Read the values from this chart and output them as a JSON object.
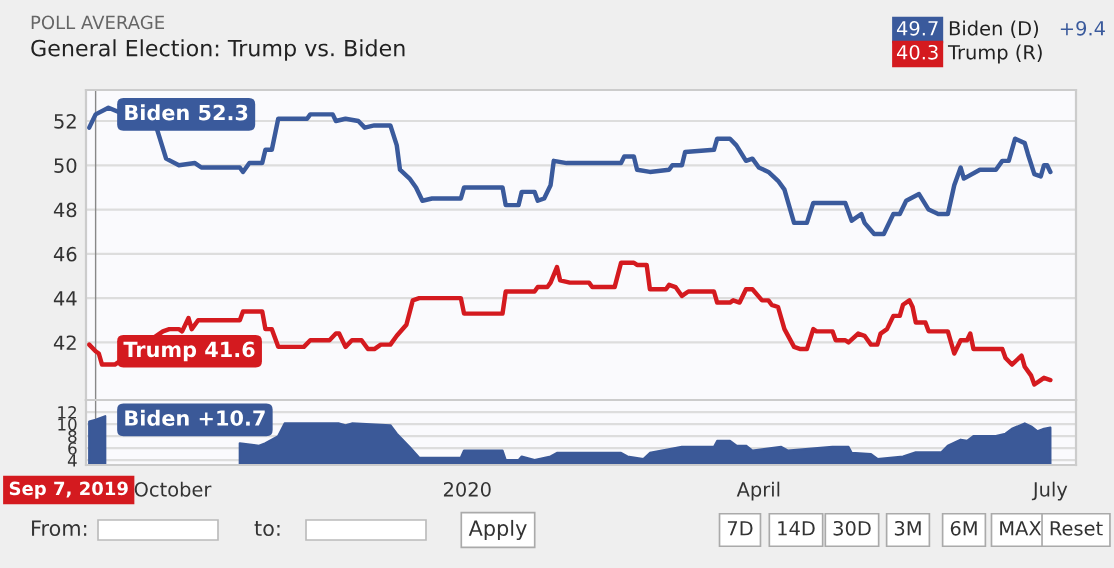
{
  "chart_data": [
    {
      "type": "line",
      "subtitle": "POLL AVERAGE",
      "title": "General Election: Trump vs. Biden",
      "series": [
        {
          "name": "Biden (D)",
          "color": "#3a5a9c",
          "x": [
            "2019-09-05",
            "2019-09-07",
            "2019-09-11",
            "2019-09-26",
            "2019-09-29",
            "2019-10-03",
            "2019-10-08",
            "2019-10-10",
            "2019-10-22",
            "2019-10-23",
            "2019-10-25",
            "2019-10-29",
            "2019-10-30",
            "2019-11-01",
            "2019-11-03",
            "2019-11-12",
            "2019-11-13",
            "2019-11-20",
            "2019-11-21",
            "2019-11-24",
            "2019-11-28",
            "2019-11-30",
            "2019-12-03",
            "2019-12-08",
            "2019-12-10",
            "2019-12-11",
            "2019-12-14",
            "2019-12-16",
            "2019-12-18",
            "2019-12-21",
            "2019-12-30",
            "2019-12-31",
            "2020-01-12",
            "2020-01-13",
            "2020-01-17",
            "2020-01-18",
            "2020-01-22",
            "2020-01-23",
            "2020-01-25",
            "2020-01-27",
            "2020-01-28",
            "2020-02-01",
            "2020-02-18",
            "2020-02-19",
            "2020-02-22",
            "2020-02-23",
            "2020-02-27",
            "2020-03-04",
            "2020-03-05",
            "2020-03-08",
            "2020-03-09",
            "2020-03-18",
            "2020-03-19",
            "2020-03-23",
            "2020-03-25",
            "2020-03-28",
            "2020-03-30",
            "2020-04-01",
            "2020-04-04",
            "2020-04-07",
            "2020-04-09",
            "2020-04-12",
            "2020-04-16",
            "2020-04-18",
            "2020-04-28",
            "2020-04-30",
            "2020-05-03",
            "2020-05-04",
            "2020-05-07",
            "2020-05-10",
            "2020-05-13",
            "2020-05-15",
            "2020-05-17",
            "2020-05-21",
            "2020-05-24",
            "2020-05-27",
            "2020-05-30",
            "2020-06-01",
            "2020-06-03",
            "2020-06-04",
            "2020-06-09",
            "2020-06-14",
            "2020-06-16",
            "2020-06-18",
            "2020-06-20",
            "2020-06-23",
            "2020-06-24",
            "2020-06-26",
            "2020-06-28",
            "2020-06-29",
            "2020-06-30",
            "2020-07-01"
          ],
          "values": [
            51.7,
            52.3,
            52.6,
            51.7,
            50.3,
            50.0,
            50.1,
            49.9,
            49.9,
            49.7,
            50.1,
            50.1,
            50.7,
            50.7,
            52.1,
            52.1,
            52.3,
            52.3,
            52.0,
            52.1,
            52.0,
            51.7,
            51.8,
            51.8,
            50.9,
            49.8,
            49.4,
            49.0,
            48.4,
            48.5,
            48.5,
            49.0,
            49.0,
            48.2,
            48.2,
            48.8,
            48.8,
            48.4,
            48.5,
            49.1,
            50.2,
            50.1,
            50.1,
            50.4,
            50.4,
            49.8,
            49.7,
            49.8,
            50.0,
            50.0,
            50.6,
            50.7,
            51.2,
            51.2,
            50.9,
            50.2,
            50.3,
            49.9,
            49.7,
            49.3,
            48.9,
            47.4,
            47.4,
            48.3,
            48.3,
            47.5,
            47.8,
            47.4,
            46.9,
            46.9,
            47.8,
            47.8,
            48.4,
            48.7,
            48.0,
            47.8,
            47.8,
            49.1,
            49.9,
            49.4,
            49.8,
            49.8,
            50.2,
            50.2,
            51.2,
            51.0,
            50.5,
            49.6,
            49.5,
            50.0,
            50.0,
            49.7
          ]
        },
        {
          "name": "Trump (R)",
          "color": "#d41a1f",
          "x": [
            "2019-09-05",
            "2019-09-07",
            "2019-09-08",
            "2019-09-09",
            "2019-09-13",
            "2019-09-28",
            "2019-09-30",
            "2019-10-03",
            "2019-10-04",
            "2019-10-06",
            "2019-10-07",
            "2019-10-09",
            "2019-10-22",
            "2019-10-23",
            "2019-10-29",
            "2019-10-30",
            "2019-11-01",
            "2019-11-03",
            "2019-11-11",
            "2019-11-13",
            "2019-11-19",
            "2019-11-21",
            "2019-11-22",
            "2019-11-24",
            "2019-11-26",
            "2019-11-29",
            "2019-12-01",
            "2019-12-03",
            "2019-12-05",
            "2019-12-08",
            "2019-12-10",
            "2019-12-13",
            "2019-12-15",
            "2019-12-17",
            "2019-12-30",
            "2019-12-31",
            "2020-01-12",
            "2020-01-13",
            "2020-01-22",
            "2020-01-23",
            "2020-01-26",
            "2020-01-27",
            "2020-01-29",
            "2020-01-30",
            "2020-02-02",
            "2020-02-08",
            "2020-02-09",
            "2020-02-16",
            "2020-02-18",
            "2020-02-22",
            "2020-02-23",
            "2020-02-26",
            "2020-02-27",
            "2020-03-03",
            "2020-03-04",
            "2020-03-06",
            "2020-03-08",
            "2020-03-10",
            "2020-03-18",
            "2020-03-19",
            "2020-03-23",
            "2020-03-24",
            "2020-03-26",
            "2020-03-28",
            "2020-03-30",
            "2020-04-02",
            "2020-04-04",
            "2020-04-05",
            "2020-04-07",
            "2020-04-09",
            "2020-04-12",
            "2020-04-14",
            "2020-04-16",
            "2020-04-18",
            "2020-04-19",
            "2020-04-24",
            "2020-04-25",
            "2020-04-28",
            "2020-04-29",
            "2020-05-02",
            "2020-05-04",
            "2020-05-06",
            "2020-05-08",
            "2020-05-09",
            "2020-05-11",
            "2020-05-13",
            "2020-05-15",
            "2020-05-16",
            "2020-05-18",
            "2020-05-19",
            "2020-05-20",
            "2020-05-23",
            "2020-05-24",
            "2020-05-30",
            "2020-06-01",
            "2020-06-03",
            "2020-06-05",
            "2020-06-06",
            "2020-06-07",
            "2020-06-16",
            "2020-06-17",
            "2020-06-19",
            "2020-06-22",
            "2020-06-23",
            "2020-06-25",
            "2020-06-26",
            "2020-06-28",
            "2020-06-29",
            "2020-07-01"
          ],
          "values": [
            41.9,
            41.6,
            41.5,
            41.0,
            41.0,
            42.5,
            42.6,
            42.6,
            42.5,
            43.1,
            42.6,
            43.0,
            43.0,
            43.4,
            43.4,
            42.6,
            42.6,
            41.8,
            41.8,
            42.1,
            42.1,
            42.4,
            42.4,
            41.8,
            42.1,
            42.1,
            41.7,
            41.7,
            41.9,
            41.9,
            42.3,
            42.8,
            43.9,
            44.0,
            44.0,
            43.3,
            43.3,
            44.3,
            44.3,
            44.5,
            44.5,
            44.7,
            45.4,
            44.8,
            44.7,
            44.7,
            44.5,
            44.5,
            45.6,
            45.6,
            45.5,
            45.5,
            44.4,
            44.4,
            44.6,
            44.5,
            44.1,
            44.3,
            44.3,
            43.8,
            43.8,
            43.9,
            43.8,
            44.4,
            44.4,
            43.9,
            43.9,
            43.7,
            43.6,
            42.6,
            41.8,
            41.7,
            41.7,
            42.6,
            42.5,
            42.5,
            42.1,
            42.1,
            42.0,
            42.4,
            42.3,
            41.9,
            41.9,
            42.4,
            42.6,
            43.2,
            43.2,
            43.7,
            43.9,
            43.6,
            42.9,
            42.9,
            42.5,
            42.5,
            41.5,
            42.1,
            42.1,
            42.4,
            41.7,
            41.7,
            41.3,
            41.0,
            41.4,
            40.9,
            40.5,
            40.1,
            40.3,
            40.4,
            40.3
          ]
        }
      ],
      "xlim": [
        "2019-09-04",
        "2020-07-09"
      ],
      "ylim": [
        39.4,
        53.4
      ],
      "yticks": [
        42,
        44,
        46,
        48,
        50,
        52
      ],
      "tick_labels": "y",
      "grid": "y",
      "legend": "top right",
      "ref_lines": [
        {
          "axis": "x",
          "value": "2019-09-07",
          "color": "#888888"
        }
      ],
      "annotations": [
        {
          "text": "Biden 52.3",
          "x": "2019-09-07",
          "y": 52.3
        },
        {
          "text": "Trump 41.6",
          "x": "2019-09-07",
          "y": 41.6
        },
        "49.7",
        "40.3",
        "+9.4"
      ]
    },
    {
      "type": "area",
      "series": [
        {
          "color": "#3b5998",
          "x": [
            "2019-09-05",
            "2019-09-07",
            "2019-09-10",
            "2019-09-22",
            "2019-10-22",
            "2019-10-28",
            "2019-10-30",
            "2019-11-03",
            "2019-11-05",
            "2019-11-22",
            "2019-11-24",
            "2019-11-26",
            "2019-12-08",
            "2019-12-10",
            "2019-12-14",
            "2019-12-17",
            "2019-12-30",
            "2019-12-31",
            "2020-01-12",
            "2020-01-13",
            "2020-01-17",
            "2020-01-18",
            "2020-01-22",
            "2020-01-27",
            "2020-01-29",
            "2020-02-18",
            "2020-02-20",
            "2020-02-25",
            "2020-02-27",
            "2020-03-08",
            "2020-03-18",
            "2020-03-19",
            "2020-03-23",
            "2020-03-25",
            "2020-03-28",
            "2020-03-30",
            "2020-04-08",
            "2020-04-10",
            "2020-04-24",
            "2020-04-29",
            "2020-04-30",
            "2020-05-06",
            "2020-05-08",
            "2020-05-16",
            "2020-05-20",
            "2020-05-28",
            "2020-05-30",
            "2020-06-03",
            "2020-06-05",
            "2020-06-07",
            "2020-06-14",
            "2020-06-17",
            "2020-06-19",
            "2020-06-23",
            "2020-06-25",
            "2020-06-27",
            "2020-06-29",
            "2020-07-01"
          ],
          "values": [
            10.4,
            10.7,
            11.3,
            null,
            6.8,
            6.4,
            6.8,
            8.0,
            10.1,
            10.1,
            9.8,
            10.1,
            9.8,
            8.4,
            6.2,
            4.4,
            4.4,
            5.6,
            5.6,
            4.0,
            4.0,
            4.6,
            4.0,
            4.6,
            5.2,
            5.2,
            4.6,
            4.2,
            5.2,
            6.2,
            6.2,
            7.2,
            7.2,
            6.4,
            6.4,
            5.6,
            6.2,
            5.6,
            6.2,
            6.2,
            5.2,
            5.0,
            4.2,
            4.6,
            5.3,
            5.3,
            6.4,
            7.4,
            7.2,
            8.0,
            8.0,
            8.4,
            9.2,
            10.1,
            9.6,
            8.8,
            9.2,
            9.4
          ]
        }
      ],
      "xlim": [
        "2019-09-04",
        "2020-07-09"
      ],
      "ylim": [
        3.2,
        14
      ],
      "yticks": [
        4,
        6,
        8,
        10,
        12
      ],
      "xticks": [
        {
          "value": "2019-10-01",
          "label": "October"
        },
        {
          "value": "2020-01-01",
          "label": "2020"
        },
        {
          "value": "2020-04-01",
          "label": "April"
        },
        {
          "value": "2020-07-01",
          "label": "July"
        }
      ],
      "grid": "y",
      "ref_lines": [
        {
          "axis": "x",
          "value": "2019-09-07",
          "label": "Sep 7, 2019",
          "color": "#888888"
        }
      ],
      "annotations": [
        {
          "text": "Biden +10.7",
          "x": "2019-09-07",
          "y": 10.7
        },
        "From:",
        "to:",
        "Apply",
        "7D",
        "14D",
        "30D",
        "3M",
        "6M",
        "MAX",
        "Reset"
      ]
    }
  ]
}
